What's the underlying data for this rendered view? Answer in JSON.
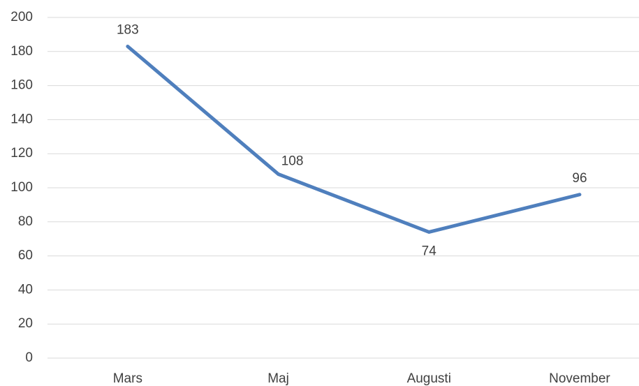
{
  "chart_data": {
    "type": "line",
    "categories": [
      "Mars",
      "Maj",
      "Augusti",
      "November"
    ],
    "series": [
      {
        "name": null,
        "color": "#4f7fbd",
        "values": [
          183,
          108,
          74,
          96
        ]
      }
    ],
    "ylim": [
      0,
      200
    ],
    "yticks": [
      0,
      20,
      40,
      60,
      80,
      100,
      120,
      140,
      160,
      180,
      200
    ],
    "grid": true
  }
}
